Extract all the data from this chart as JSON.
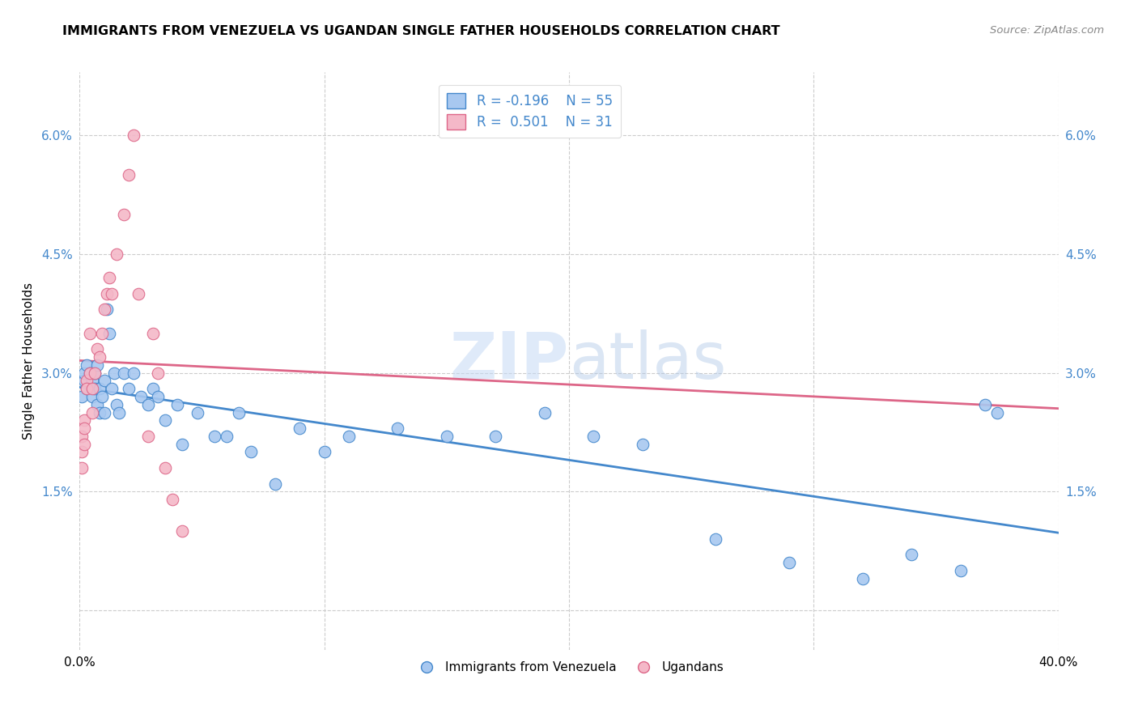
{
  "title": "IMMIGRANTS FROM VENEZUELA VS UGANDAN SINGLE FATHER HOUSEHOLDS CORRELATION CHART",
  "source": "Source: ZipAtlas.com",
  "ylabel": "Single Father Households",
  "yticks": [
    0.0,
    0.015,
    0.03,
    0.045,
    0.06
  ],
  "ytick_labels": [
    "",
    "1.5%",
    "3.0%",
    "4.5%",
    "6.0%"
  ],
  "xlim": [
    0.0,
    0.4
  ],
  "ylim": [
    -0.005,
    0.068
  ],
  "legend_r1": "R = -0.196",
  "legend_n1": "N = 55",
  "legend_r2": "R =  0.501",
  "legend_n2": "N = 31",
  "color_blue": "#a8c8f0",
  "color_pink": "#f4b8c8",
  "trendline_blue": "#4488cc",
  "trendline_pink": "#dd6688",
  "watermark_zip": "ZIP",
  "watermark_atlas": "atlas",
  "blue_scatter_x": [
    0.001,
    0.002,
    0.002,
    0.003,
    0.003,
    0.004,
    0.005,
    0.005,
    0.006,
    0.006,
    0.007,
    0.007,
    0.008,
    0.008,
    0.009,
    0.01,
    0.01,
    0.011,
    0.012,
    0.013,
    0.014,
    0.015,
    0.016,
    0.018,
    0.02,
    0.022,
    0.025,
    0.028,
    0.03,
    0.032,
    0.035,
    0.04,
    0.042,
    0.048,
    0.055,
    0.06,
    0.065,
    0.07,
    0.08,
    0.09,
    0.1,
    0.11,
    0.13,
    0.15,
    0.17,
    0.19,
    0.21,
    0.23,
    0.26,
    0.29,
    0.32,
    0.34,
    0.36,
    0.37,
    0.375
  ],
  "blue_scatter_y": [
    0.027,
    0.029,
    0.03,
    0.028,
    0.031,
    0.03,
    0.027,
    0.029,
    0.028,
    0.03,
    0.026,
    0.031,
    0.025,
    0.028,
    0.027,
    0.029,
    0.025,
    0.038,
    0.035,
    0.028,
    0.03,
    0.026,
    0.025,
    0.03,
    0.028,
    0.03,
    0.027,
    0.026,
    0.028,
    0.027,
    0.024,
    0.026,
    0.021,
    0.025,
    0.022,
    0.022,
    0.025,
    0.02,
    0.016,
    0.023,
    0.02,
    0.022,
    0.023,
    0.022,
    0.022,
    0.025,
    0.022,
    0.021,
    0.009,
    0.006,
    0.004,
    0.007,
    0.005,
    0.026,
    0.025
  ],
  "pink_scatter_x": [
    0.001,
    0.001,
    0.001,
    0.002,
    0.002,
    0.002,
    0.003,
    0.003,
    0.004,
    0.004,
    0.005,
    0.005,
    0.006,
    0.007,
    0.008,
    0.009,
    0.01,
    0.011,
    0.012,
    0.013,
    0.015,
    0.018,
    0.02,
    0.022,
    0.024,
    0.028,
    0.03,
    0.032,
    0.035,
    0.038,
    0.042
  ],
  "pink_scatter_y": [
    0.022,
    0.02,
    0.018,
    0.024,
    0.023,
    0.021,
    0.029,
    0.028,
    0.035,
    0.03,
    0.028,
    0.025,
    0.03,
    0.033,
    0.032,
    0.035,
    0.038,
    0.04,
    0.042,
    0.04,
    0.045,
    0.05,
    0.055,
    0.06,
    0.04,
    0.022,
    0.035,
    0.03,
    0.018,
    0.014,
    0.01
  ]
}
